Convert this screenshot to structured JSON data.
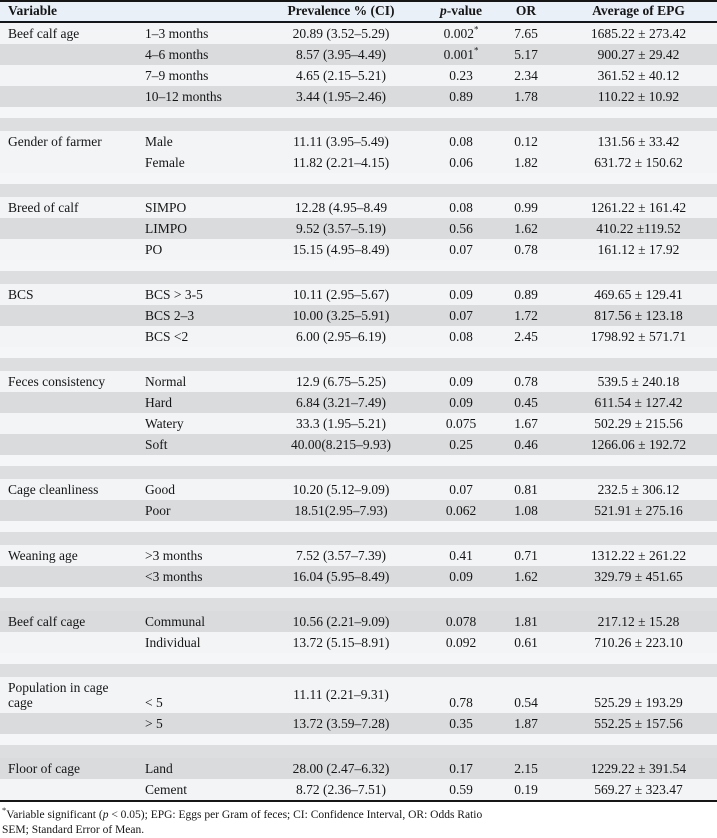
{
  "table": {
    "headers": {
      "variable": "Variable",
      "prevalence": "Prevalence % (CI)",
      "pvalue_italic": "p",
      "pvalue_rest": "-value",
      "or": "OR",
      "epg": "Average of EPG"
    },
    "sections": [
      {
        "variable": "Beef calf age",
        "rows": [
          {
            "label": "1–3 months",
            "prevalence": "20.89 (3.52–5.29)",
            "p": "0.002",
            "p_sig": true,
            "or": "7.65",
            "epg": "1685.22 ± 273.42",
            "shade": "w"
          },
          {
            "label": "4–6 months",
            "prevalence": "8.57 (3.95–4.49)",
            "p": "0.001",
            "p_sig": true,
            "or": "5.17",
            "epg": "900.27 ± 29.42",
            "shade": "g"
          },
          {
            "label": "7–9 months",
            "prevalence": "4.65 (2.15–5.21)",
            "p": "0.23",
            "p_sig": false,
            "or": "2.34",
            "epg": "361.52 ± 40.12",
            "shade": "w"
          },
          {
            "label": "10–12 months",
            "prevalence": "3.44 (1.95–2.46)",
            "p": "0.89",
            "p_sig": false,
            "or": "1.78",
            "epg": "110.22 ± 10.92",
            "shade": "g"
          }
        ]
      },
      {
        "variable": "Gender of farmer",
        "rows": [
          {
            "label": "Male",
            "prevalence": "11.11 (3.95–5.49)",
            "p": "0.08",
            "p_sig": false,
            "or": "0.12",
            "epg": "131.56 ± 33.42",
            "shade": "w"
          },
          {
            "label": "Female",
            "prevalence": "11.82 (2.21–4.15)",
            "p": "0.06",
            "p_sig": false,
            "or": "1.82",
            "epg": "631.72 ± 150.62",
            "shade": "w"
          }
        ]
      },
      {
        "variable": "Breed of calf",
        "rows": [
          {
            "label": "SIMPO",
            "prevalence": "12.28 (4.95–8.49",
            "p": "0.08",
            "p_sig": false,
            "or": "0.99",
            "epg": "1261.22 ± 161.42",
            "shade": "w"
          },
          {
            "label": "LIMPO",
            "prevalence": "9.52 (3.57–5.19)",
            "p": "0.56",
            "p_sig": false,
            "or": "1.62",
            "epg": "410.22 ±119.52",
            "shade": "g"
          },
          {
            "label": "PO",
            "prevalence": "15.15 (4.95–8.49)",
            "p": "0.07",
            "p_sig": false,
            "or": "0.78",
            "epg": "161.12 ± 17.92",
            "shade": "w"
          }
        ]
      },
      {
        "variable": "BCS",
        "rows": [
          {
            "label": "BCS > 3-5",
            "prevalence": "10.11 (2.95–5.67)",
            "p": "0.09",
            "p_sig": false,
            "or": "0.89",
            "epg": "469.65 ± 129.41",
            "shade": "w"
          },
          {
            "label": "BCS 2–3",
            "prevalence": "10.00 (3.25–5.91)",
            "p": "0.07",
            "p_sig": false,
            "or": "1.72",
            "epg": "817.56 ± 123.18",
            "shade": "g"
          },
          {
            "label": "BCS <2",
            "prevalence": "6.00 (2.95–6.19)",
            "p": "0.08",
            "p_sig": false,
            "or": "2.45",
            "epg": "1798.92 ± 571.71",
            "shade": "w"
          }
        ]
      },
      {
        "variable": "Feces consistency",
        "rows": [
          {
            "label": "Normal",
            "prevalence": "12.9 (6.75–5.25)",
            "p": "0.09",
            "p_sig": false,
            "or": "0.78",
            "epg": "539.5 ± 240.18",
            "shade": "w"
          },
          {
            "label": "Hard",
            "prevalence": "6.84 (3.21–7.49)",
            "p": "0.09",
            "p_sig": false,
            "or": "0.45",
            "epg": "611.54 ± 127.42",
            "shade": "g"
          },
          {
            "label": "Watery",
            "prevalence": "33.3 (1.95–5.21)",
            "p": "0.075",
            "p_sig": false,
            "or": "1.67",
            "epg": "502.29 ± 215.56",
            "shade": "w"
          },
          {
            "label": "Soft",
            "prevalence": "40.00(8.215–9.93)",
            "p": "0.25",
            "p_sig": false,
            "or": "0.46",
            "epg": "1266.06 ± 192.72",
            "shade": "g"
          }
        ]
      },
      {
        "variable": "Cage cleanliness",
        "rows": [
          {
            "label": "Good",
            "prevalence": "10.20 (5.12–9.09)",
            "p": "0.07",
            "p_sig": false,
            "or": "0.81",
            "epg": "232.5 ± 306.12",
            "shade": "w"
          },
          {
            "label": "Poor",
            "prevalence": "18.51(2.95–7.93)",
            "p": "0.062",
            "p_sig": false,
            "or": "1.08",
            "epg": "521.91 ± 275.16",
            "shade": "g"
          }
        ]
      },
      {
        "variable": "Weaning age",
        "rows": [
          {
            "label": ">3 months",
            "prevalence": "7.52 (3.57–7.39)",
            "p": "0.41",
            "p_sig": false,
            "or": "0.71",
            "epg": "1312.22 ± 261.22",
            "shade": "w"
          },
          {
            "label": "<3 months",
            "prevalence": "16.04 (5.95–8.49)",
            "p": "0.09",
            "p_sig": false,
            "or": "1.62",
            "epg": "329.79 ± 451.65",
            "shade": "g"
          }
        ]
      },
      {
        "variable": "Beef calf cage",
        "rows": [
          {
            "label": "Communal",
            "prevalence": "10.56 (2.21–9.09)",
            "p": "0.078",
            "p_sig": false,
            "or": "1.81",
            "epg": "217.12 ± 15.28",
            "shade": "g"
          },
          {
            "label": "Individual",
            "prevalence": "13.72 (5.15–8.91)",
            "p": "0.092",
            "p_sig": false,
            "or": "0.61",
            "epg": "710.26 ± 223.10",
            "shade": "w"
          }
        ]
      },
      {
        "variable": "Population in cage\ncage",
        "rows": [
          {
            "label": "< 5",
            "prevalence": "11.11 (2.21–9.31)",
            "p": "0.78",
            "p_sig": false,
            "or": "0.54",
            "epg": "525.29 ± 193.29",
            "shade": "w",
            "tall": true
          },
          {
            "label": "> 5",
            "prevalence": "13.72 (3.59–7.28)",
            "p": "0.35",
            "p_sig": false,
            "or": "1.87",
            "epg": "552.25 ± 157.56",
            "shade": "g"
          }
        ]
      },
      {
        "variable": "Floor of cage",
        "rows": [
          {
            "label": "Land",
            "prevalence": "28.00 (2.47–6.32)",
            "p": "0.17",
            "p_sig": false,
            "or": "2.15",
            "epg": "1229.22 ± 391.54",
            "shade": "g"
          },
          {
            "label": "Cement",
            "prevalence": "8.72 (2.36–7.51)",
            "p": "0.59",
            "p_sig": false,
            "or": "0.19",
            "epg": "569.27 ± 323.47",
            "shade": "w"
          }
        ]
      }
    ],
    "footnotes": {
      "asterisk": "*",
      "line1_pre": "Variable significant (",
      "line1_italic": "p",
      "line1_post": " < 0.05); EPG: Eggs per Gram of feces; CI: Confidence Interval, OR: Odds Ratio",
      "line2": "SEM; Standard Error of Mean."
    }
  }
}
